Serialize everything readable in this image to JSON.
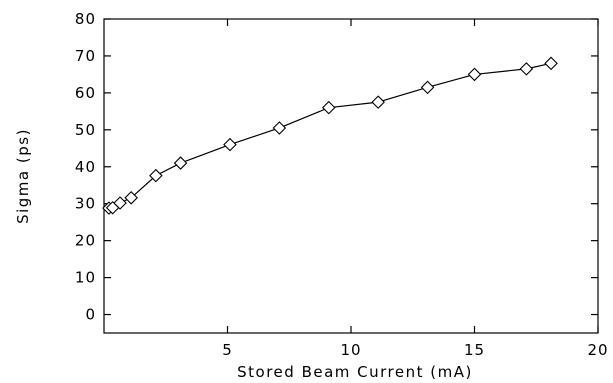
{
  "chart_data": {
    "type": "line",
    "title": "",
    "xlabel": "Stored Beam Current (mA)",
    "ylabel": "Sigma (ps)",
    "xlim": [
      0,
      20
    ],
    "ylim": [
      -5,
      80
    ],
    "xticks": [
      5,
      10,
      15,
      20
    ],
    "yticks": [
      0,
      10,
      20,
      30,
      40,
      50,
      60,
      70,
      80
    ],
    "grid": false,
    "marker": "diamond",
    "series": [
      {
        "x": [
          0.2,
          0.35,
          0.65,
          1.1,
          2.1,
          3.1,
          5.1,
          7.1,
          9.1,
          11.1,
          13.1,
          15.0,
          17.1,
          18.1
        ],
        "y": [
          28.8,
          28.9,
          30.2,
          31.6,
          37.6,
          41.0,
          46.0,
          50.5,
          56.0,
          57.5,
          61.5,
          65.0,
          66.5,
          68.0
        ]
      }
    ]
  }
}
